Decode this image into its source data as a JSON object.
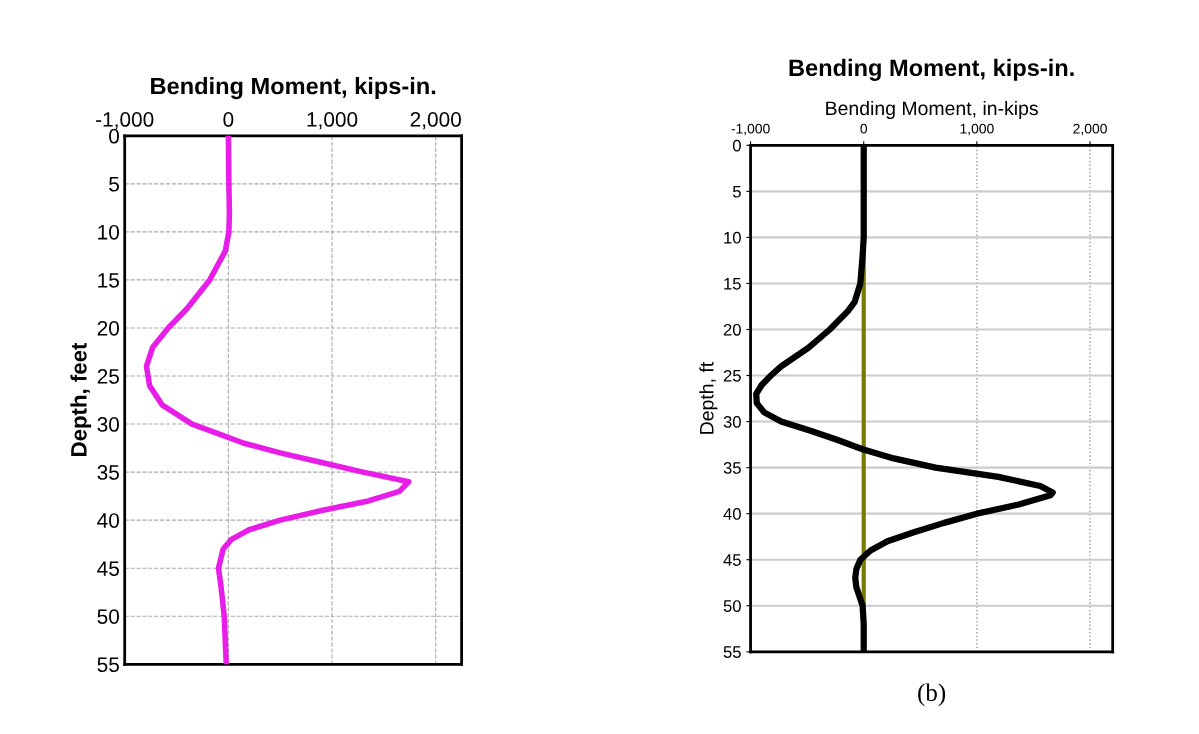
{
  "chart_data": [
    {
      "type": "line",
      "title": "Bending Moment, kips-in.",
      "ylabel": "Depth, feet",
      "xlim": [
        -1000,
        2250
      ],
      "xticks": [
        {
          "value": -1000,
          "label": "-1,000"
        },
        0,
        {
          "value": 1000,
          "label": "1,000"
        },
        {
          "value": 2000,
          "label": "2,000"
        }
      ],
      "ylim": [
        55,
        0
      ],
      "yticks": [
        0,
        5,
        10,
        15,
        20,
        25,
        30,
        35,
        40,
        45,
        50,
        55
      ],
      "grid": true,
      "marker": "none",
      "line_style": "solid",
      "series": [
        {
          "color": "#e81ee8",
          "x": [
            0,
            5,
            10,
            5,
            -30,
            -180,
            -400,
            -580,
            -730,
            -790,
            -760,
            -640,
            -350,
            -100,
            150,
            500,
            900,
            1300,
            1740,
            1650,
            1350,
            900,
            500,
            200,
            30,
            -50,
            -95,
            -70,
            -40,
            -20
          ],
          "values": [
            0,
            5,
            8,
            10,
            12,
            15,
            18,
            20,
            22,
            24,
            26,
            28,
            30,
            31,
            32,
            33,
            34,
            35,
            36,
            37,
            38,
            39,
            40,
            41,
            42,
            43,
            45,
            47,
            50,
            55
          ]
        }
      ]
    },
    {
      "type": "line",
      "title": "Bending Moment, kips-in.",
      "xlabel": "Bending Moment, in-kips",
      "ylabel": "Depth, ft",
      "xlim": [
        -1000,
        2200
      ],
      "xticks": [
        {
          "value": -1000,
          "label": "-1,000"
        },
        0,
        {
          "value": 1000,
          "label": "1,000"
        },
        {
          "value": 2000,
          "label": "2,000"
        }
      ],
      "ylim": [
        55,
        0
      ],
      "yticks": [
        0,
        5,
        10,
        15,
        20,
        25,
        30,
        35,
        40,
        45,
        50,
        55
      ],
      "grid": true,
      "marker": "none",
      "line_style": "solid",
      "ref_lines": [
        {
          "axis": "x",
          "value": 0,
          "color": "#7a7a00"
        }
      ],
      "annotations": [
        "(b)"
      ],
      "series": [
        {
          "color": "#000000",
          "x": [
            0,
            0,
            -10,
            -30,
            -80,
            -140,
            -300,
            -490,
            -730,
            -820,
            -900,
            -950,
            -945,
            -880,
            -730,
            -470,
            -230,
            -10,
            265,
            635,
            1190,
            1560,
            1670,
            1650,
            1370,
            1000,
            710,
            450,
            210,
            60,
            -30,
            -65,
            -75,
            -65,
            -10,
            0,
            0
          ],
          "values": [
            0,
            10,
            12,
            15,
            17,
            18,
            20,
            22,
            24,
            25,
            26,
            27,
            28,
            29,
            30,
            31,
            32,
            33,
            34,
            35,
            36,
            37,
            37.7,
            38,
            39,
            40,
            41,
            42,
            43,
            44,
            45,
            46,
            47,
            48,
            50,
            52,
            55
          ]
        }
      ]
    }
  ]
}
